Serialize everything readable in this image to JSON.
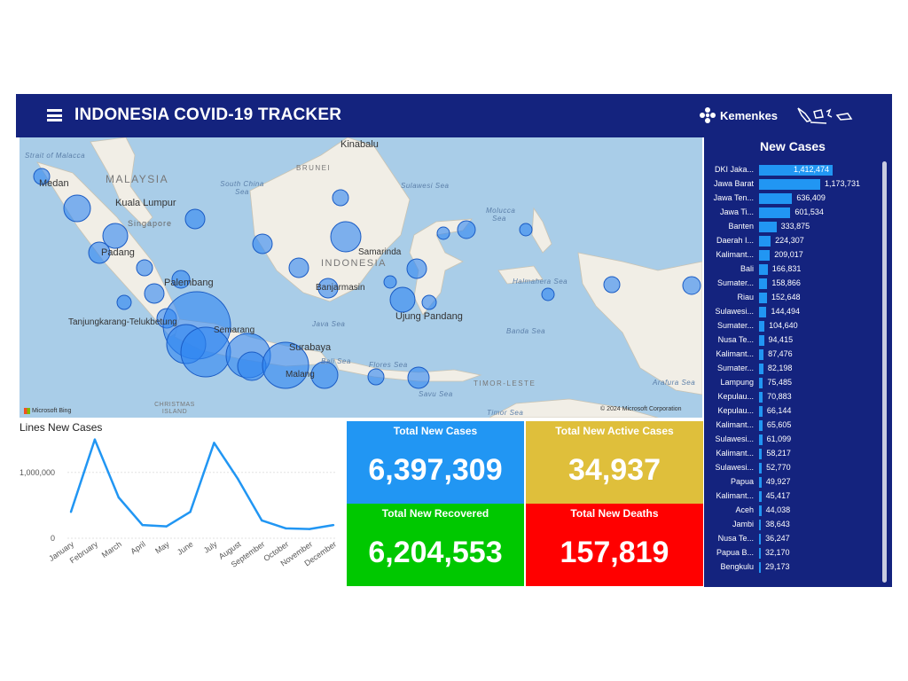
{
  "header": {
    "title": "INDONESIA COVID-19 TRACKER",
    "logo_text": "Kemenkes",
    "colors": {
      "bar": "#14237e",
      "accent": "#2196f3"
    }
  },
  "map": {
    "labels": [
      "Kinabalu",
      "Medan",
      "Kuala Lumpur",
      "Singapore",
      "Padang",
      "Palembang",
      "Tanjungkarang-Telukbetung",
      "Samarinda",
      "Banjarmasin",
      "Ujung Pandang",
      "Surabaya",
      "Semarang",
      "Malang"
    ],
    "countries": [
      "MALAYSIA",
      "BRUNEI",
      "INDONESIA",
      "TIMOR-LESTE",
      "CHRISTMAS ISLAND"
    ],
    "seas": [
      "Strait of Malacca",
      "South China Sea",
      "Sulawesi Sea",
      "Molucca Sea",
      "Halmahera Sea",
      "Java Sea",
      "Bali Sea",
      "Flores Sea",
      "Banda Sea",
      "Savu Sea",
      "Timor Sea",
      "Arafura Sea"
    ],
    "attribution": "Microsoft Bing",
    "copyright": "© 2024 Microsoft Corporation"
  },
  "new_cases": {
    "title": "New Cases",
    "rows": [
      {
        "label": "DKI Jaka...",
        "value": 1412474,
        "text": "1,412,474"
      },
      {
        "label": "Jawa Barat",
        "value": 1173731,
        "text": "1,173,731"
      },
      {
        "label": "Jawa Ten...",
        "value": 636409,
        "text": "636,409"
      },
      {
        "label": "Jawa Ti...",
        "value": 601534,
        "text": "601,534"
      },
      {
        "label": "Banten",
        "value": 333875,
        "text": "333,875"
      },
      {
        "label": "Daerah I...",
        "value": 224307,
        "text": "224,307"
      },
      {
        "label": "Kalimant...",
        "value": 209017,
        "text": "209,017"
      },
      {
        "label": "Bali",
        "value": 166831,
        "text": "166,831"
      },
      {
        "label": "Sumater...",
        "value": 158866,
        "text": "158,866"
      },
      {
        "label": "Riau",
        "value": 152648,
        "text": "152,648"
      },
      {
        "label": "Sulawesi...",
        "value": 144494,
        "text": "144,494"
      },
      {
        "label": "Sumater...",
        "value": 104640,
        "text": "104,640"
      },
      {
        "label": "Nusa Te...",
        "value": 94415,
        "text": "94,415"
      },
      {
        "label": "Kalimant...",
        "value": 87476,
        "text": "87,476"
      },
      {
        "label": "Sumater...",
        "value": 82198,
        "text": "82,198"
      },
      {
        "label": "Lampung",
        "value": 75485,
        "text": "75,485"
      },
      {
        "label": "Kepulau...",
        "value": 70883,
        "text": "70,883"
      },
      {
        "label": "Kepulau...",
        "value": 66144,
        "text": "66,144"
      },
      {
        "label": "Kalimant...",
        "value": 65605,
        "text": "65,605"
      },
      {
        "label": "Sulawesi...",
        "value": 61099,
        "text": "61,099"
      },
      {
        "label": "Kalimant...",
        "value": 58217,
        "text": "58,217"
      },
      {
        "label": "Sulawesi...",
        "value": 52770,
        "text": "52,770"
      },
      {
        "label": "Papua",
        "value": 49927,
        "text": "49,927"
      },
      {
        "label": "Kalimant...",
        "value": 45417,
        "text": "45,417"
      },
      {
        "label": "Aceh",
        "value": 44038,
        "text": "44,038"
      },
      {
        "label": "Jambi",
        "value": 38643,
        "text": "38,643"
      },
      {
        "label": "Nusa Te...",
        "value": 36247,
        "text": "36,247"
      },
      {
        "label": "Papua B...",
        "value": 32170,
        "text": "32,170"
      },
      {
        "label": "Bengkulu",
        "value": 29173,
        "text": "29,173"
      }
    ]
  },
  "chart_data": {
    "type": "line",
    "title": "Lines New Cases",
    "xlabel": "",
    "ylabel": "",
    "categories": [
      "January",
      "February",
      "March",
      "April",
      "May",
      "June",
      "July",
      "August",
      "September",
      "October",
      "November",
      "December"
    ],
    "values": [
      400000,
      1500000,
      620000,
      200000,
      180000,
      400000,
      1450000,
      900000,
      270000,
      150000,
      140000,
      200000
    ],
    "y_ticks": [
      {
        "value": 0,
        "label": "0"
      },
      {
        "value": 1000000,
        "label": "1,000,000"
      }
    ],
    "ylim": [
      0,
      1550000
    ],
    "grid": true,
    "color": "#2196f3"
  },
  "kpis": [
    {
      "title": "Total New Cases",
      "value": "6,397,309",
      "color": "#2196f3"
    },
    {
      "title": "Total New Active Cases",
      "value": "34,937",
      "color": "#dfbf3b"
    },
    {
      "title": "Total New Recovered",
      "value": "6,204,553",
      "color": "#00c800"
    },
    {
      "title": "Total New Deaths",
      "value": "157,819",
      "color": "#ff0000"
    }
  ]
}
